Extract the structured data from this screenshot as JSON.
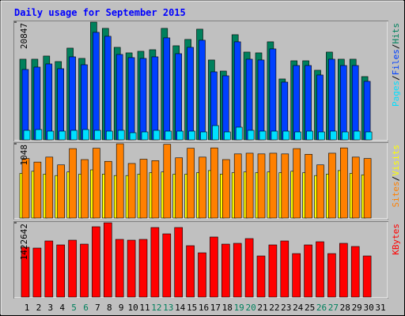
{
  "chart_data": [
    {
      "type": "bar",
      "title": "Daily usage for September 2015",
      "ylim": [
        0,
        20847
      ],
      "yticks": [
        20847
      ],
      "legend_separator": "/",
      "series": [
        {
          "name": "Hits",
          "color": "#00805c",
          "values": [
            14280,
            14280,
            14840,
            13860,
            16240,
            14420,
            20847,
            19740,
            16380,
            15400,
            15680,
            15960,
            19740,
            16660,
            17780,
            19600,
            14140,
            12180,
            18620,
            15540,
            15400,
            17360,
            10780,
            14000,
            14000,
            12320,
            15540,
            14280,
            14280,
            11200,
            null
          ]
        },
        {
          "name": "Files",
          "color": "#0040ff",
          "values": [
            12460,
            12880,
            13440,
            12600,
            14700,
            13300,
            19040,
            18340,
            15120,
            14560,
            14420,
            14700,
            18060,
            15260,
            16380,
            17640,
            12040,
            11340,
            17360,
            14280,
            14140,
            16100,
            10220,
            13160,
            13160,
            11480,
            14280,
            13160,
            13160,
            10360,
            null
          ]
        },
        {
          "name": "Pages",
          "color": "#00e0ff",
          "values": [
            1680,
            1820,
            1540,
            1540,
            1680,
            1820,
            1680,
            1540,
            1680,
            1260,
            1400,
            1680,
            1540,
            1540,
            1540,
            1400,
            2520,
            1400,
            2240,
            1680,
            1540,
            1540,
            1540,
            1400,
            1540,
            1400,
            1540,
            1400,
            1540,
            1400,
            null
          ]
        }
      ]
    },
    {
      "type": "bar",
      "ylim": [
        0,
        1048
      ],
      "yticks": [
        1048
      ],
      "legend_separator": "/",
      "series": [
        {
          "name": "Visits",
          "color": "#ffff00",
          "values": [
            630,
            660,
            620,
            600,
            650,
            620,
            680,
            620,
            600,
            600,
            620,
            640,
            650,
            620,
            620,
            640,
            670,
            620,
            640,
            650,
            640,
            650,
            640,
            660,
            640,
            600,
            620,
            670,
            630,
            610,
            null
          ]
        },
        {
          "name": "Sites",
          "color": "#ff8000",
          "values": [
            840,
            790,
            860,
            750,
            980,
            825,
            985,
            800,
            1048,
            770,
            830,
            810,
            1040,
            850,
            985,
            860,
            990,
            825,
            905,
            915,
            905,
            915,
            905,
            980,
            900,
            750,
            915,
            990,
            860,
            840,
            null
          ]
        }
      ]
    },
    {
      "type": "bar",
      "ylim": [
        0,
        1422642
      ],
      "yticks": [
        1422642
      ],
      "categories": [
        "1",
        "2",
        "3",
        "4",
        "5",
        "6",
        "7",
        "8",
        "9",
        "10",
        "11",
        "12",
        "13",
        "14",
        "15",
        "16",
        "17",
        "18",
        "19",
        "20",
        "21",
        "22",
        "23",
        "24",
        "25",
        "26",
        "27",
        "28",
        "29",
        "30",
        "31"
      ],
      "category_label_colors": [
        "#000000",
        "#000000",
        "#000000",
        "#000000",
        "#00805c",
        "#00805c",
        "#000000",
        "#000000",
        "#000000",
        "#000000",
        "#000000",
        "#00805c",
        "#00805c",
        "#000000",
        "#000000",
        "#000000",
        "#000000",
        "#000000",
        "#00805c",
        "#00805c",
        "#000000",
        "#000000",
        "#000000",
        "#000000",
        "#000000",
        "#00805c",
        "#00805c",
        "#000000",
        "#000000",
        "#000000",
        "#000000"
      ],
      "series": [
        {
          "name": "KBytes",
          "color": "#ff0000",
          "values": [
            953442,
            938308,
            1074514,
            998844,
            1089648,
            1013978,
            1346926,
            1422642,
            1104782,
            1089648,
            1104782,
            1331792,
            1210720,
            1331792,
            983710,
            847504,
            1150184,
            1013978,
            1029112,
            1119916,
            786968,
            998844,
            1074514,
            832370,
            998844,
            1059380,
            832370,
            1029112,
            968576,
            786968,
            null
          ]
        }
      ]
    }
  ]
}
